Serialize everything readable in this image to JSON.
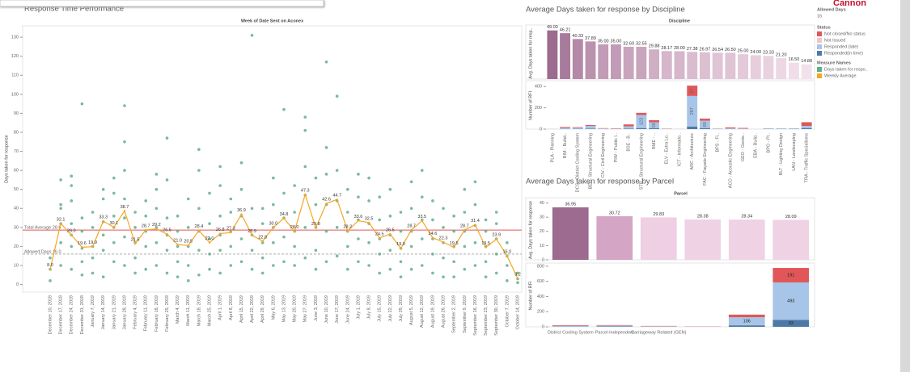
{
  "logo": "Cannon",
  "legend": {
    "allowed_days_title": "Allowed Days",
    "allowed_days_value": 16,
    "status_title": "Status",
    "measure_title": "Measure Names"
  },
  "chart_data": [
    {
      "type": "scatter_line",
      "title": "Response Time Performance",
      "subtitle": "Week of Date Sent on Aconex",
      "y_label": "Days taken for response",
      "categories": [
        "December 10, 2018",
        "December 17, 2018",
        "December 24, 2018",
        "December 31, 2018",
        "January 7, 2019",
        "January 14, 2019",
        "January 21, 2019",
        "January 28, 2019",
        "February 4, 2019",
        "February 11, 2019",
        "February 18, 2019",
        "February 25, 2019",
        "March 4, 2019",
        "March 11, 2019",
        "March 18, 2019",
        "March 25, 2019",
        "April 1, 2019",
        "April 8, 2019",
        "April 15, 2019",
        "April 22, 2019",
        "April 29, 2019",
        "May 6, 2019",
        "May 13, 2019",
        "May 20, 2019",
        "May 27, 2019",
        "June 3, 2019",
        "June 10, 2019",
        "June 17, 2019",
        "June 24, 2019",
        "July 1, 2019",
        "July 8, 2019",
        "July 15, 2019",
        "July 22, 2019",
        "July 29, 2019",
        "August 5, 2019",
        "August 12, 2019",
        "August 19, 2019",
        "August 26, 2019",
        "September 2, 2019",
        "September 9, 2019",
        "September 16, 2019",
        "September 23, 2019",
        "September 30, 2019",
        "October 7, 2019",
        "October 14, 2019"
      ],
      "points": {
        "name": "Days taken for respo..",
        "color": "#5fae8c",
        "values": [
          [
            2,
            8,
            14
          ],
          [
            10,
            22,
            32,
            40,
            42,
            55
          ],
          [
            8,
            20,
            26,
            32,
            44,
            52,
            57
          ],
          [
            5,
            12,
            19,
            28,
            35,
            95
          ],
          [
            6,
            14,
            20,
            30,
            38
          ],
          [
            4,
            18,
            26,
            33,
            45,
            50
          ],
          [
            12,
            22,
            30,
            36,
            48,
            56
          ],
          [
            10,
            25,
            35,
            45,
            60,
            75,
            94
          ],
          [
            6,
            14,
            22,
            30,
            38
          ],
          [
            8,
            20,
            28,
            36,
            44
          ],
          [
            10,
            22,
            30,
            40,
            50,
            58
          ],
          [
            6,
            18,
            26,
            35,
            55,
            77
          ],
          [
            4,
            12,
            20,
            28,
            36
          ],
          [
            2,
            10,
            20,
            30,
            45
          ],
          [
            5,
            18,
            28,
            40,
            60,
            71
          ],
          [
            8,
            16,
            24,
            32,
            48
          ],
          [
            6,
            18,
            26,
            36,
            52,
            62
          ],
          [
            10,
            20,
            28,
            38,
            45
          ],
          [
            12,
            24,
            36,
            50,
            64
          ],
          [
            8,
            18,
            26,
            40,
            131
          ],
          [
            6,
            14,
            22,
            32,
            40
          ],
          [
            10,
            22,
            30,
            42,
            56
          ],
          [
            12,
            25,
            35,
            48,
            92
          ],
          [
            10,
            20,
            28,
            38,
            52
          ],
          [
            14,
            30,
            47,
            62,
            81,
            88
          ],
          [
            8,
            18,
            30,
            42,
            56
          ],
          [
            12,
            28,
            42,
            58,
            72,
            117
          ],
          [
            15,
            30,
            44,
            60,
            99
          ],
          [
            8,
            20,
            28,
            38,
            50
          ],
          [
            12,
            24,
            34,
            46,
            58
          ],
          [
            10,
            22,
            32,
            44,
            56
          ],
          [
            6,
            16,
            24,
            34,
            46
          ],
          [
            8,
            18,
            26,
            36,
            50
          ],
          [
            4,
            12,
            19,
            28,
            38
          ],
          [
            8,
            20,
            28,
            40,
            54
          ],
          [
            10,
            24,
            34,
            46,
            60
          ],
          [
            6,
            16,
            24,
            34,
            44
          ],
          [
            4,
            14,
            22,
            30,
            40
          ],
          [
            4,
            12,
            20,
            28,
            36
          ],
          [
            8,
            20,
            28,
            38,
            50
          ],
          [
            10,
            22,
            31,
            42,
            54
          ],
          [
            4,
            12,
            20,
            28,
            34
          ],
          [
            6,
            16,
            24,
            32,
            38
          ],
          [
            2,
            10,
            15,
            22
          ],
          [
            1,
            3,
            6
          ]
        ]
      },
      "weekly_average": {
        "name": "Weekly Average",
        "color": "#f5a623",
        "values": [
          8.0,
          32.1,
          26.0,
          19.6,
          19.9,
          33.3,
          30.1,
          38.7,
          21.5,
          28.7,
          29.2,
          26.5,
          21.0,
          20.5,
          28.4,
          22.0,
          26.8,
          27.3,
          36.9,
          25.9,
          22.8,
          30.0,
          34.8,
          28.0,
          47.3,
          29.8,
          42.6,
          44.7,
          28.2,
          33.6,
          32.5,
          24.5,
          26.5,
          19.0,
          28.7,
          33.5,
          24.6,
          22.3,
          19.5,
          28.7,
          31.4,
          19.5,
          23.9,
          15.0,
          3.2
        ],
        "value_labels": [
          "8.0",
          "32.1",
          "26.0",
          "19.6",
          "19.9",
          "33.3",
          "30.1",
          "38.7",
          "21.5",
          "28.7",
          "29.2",
          "26.5",
          "21.0",
          "20.5",
          "28.4",
          "22.0",
          "26.8",
          "27.3",
          "36.9",
          "25.9",
          "22.8",
          "30.0",
          "34.8",
          "28.0",
          "47.3",
          "29.8",
          "42.6",
          "44.7",
          "28.2",
          "33.6",
          "32.5",
          "24.5",
          "26.5",
          "19.0",
          "28.7",
          "33.5",
          "24.6",
          "22.3",
          "19.5",
          "28.7",
          "31.4",
          "19.5",
          "23.9",
          "15.0",
          "3.2"
        ]
      },
      "reference_lines": [
        {
          "label": "Total Average 28.6",
          "value": 28.6,
          "color": "#e15759"
        },
        {
          "label": "Allowed Days 16.0",
          "value": 16.0,
          "color": "#aaaaaa"
        }
      ],
      "ylim": [
        -4,
        136
      ],
      "yticks": [
        0,
        10,
        20,
        30,
        40,
        50,
        60,
        70,
        80,
        90,
        100,
        110,
        120,
        130
      ]
    },
    {
      "type": "bar_stack",
      "title": "Average Days taken for response by Discipline",
      "header": "Discipline",
      "y_label": "Avg. Days taken for resp..",
      "categories": [
        "PLA - Planning",
        "BIM - Buildi..",
        "DCS - District Cooling System",
        "BEL - Structural Engineering",
        "CIV - Civil Engineering",
        "PIW - Public I..",
        "BSE - B..",
        "STR - Structural Engineering",
        "BME - ..",
        "ELV - Extra Lo..",
        "ICT - Informatio..",
        "ARC - Architecture",
        "FAC - Façade Engineering",
        "BPS - Fi..",
        "ACO - Acoustic Engineering",
        "GEO - Geote..",
        "EBA - Build..",
        "BPO - Pl..",
        "BLT - Lighting Design",
        "LAN - Landscaping",
        "TRA - Traffic Specialisms"
      ],
      "values": [
        49.0,
        46.21,
        40.33,
        37.89,
        35.0,
        35.0,
        32.6,
        32.55,
        29.88,
        28.17,
        28.0,
        27.38,
        26.97,
        26.54,
        26.5,
        25.0,
        24.0,
        23.33,
        21.2,
        16.5,
        14.88
      ],
      "value_labels": [
        "49.00",
        "46.21",
        "40.33",
        "37.89",
        "35.00",
        "35.00",
        "32.60",
        "32.55",
        "29.88",
        "28.17",
        "28.00",
        "27.38",
        "26.97",
        "26.54",
        "26.50",
        "25.00",
        "24.00",
        "23.33",
        "21.20",
        "16.50",
        "14.88"
      ],
      "colors": [
        "#9c6b8f",
        "#a87a9b",
        "#b488a7",
        "#bb92ae",
        "#c29cb6",
        "#c29cb6",
        "#c9a5bd",
        "#c9a5bd",
        "#d0afc5",
        "#d5b6ca",
        "#d5b6ca",
        "#d9bccf",
        "#dcc0d2",
        "#dfc4d5",
        "#dfc4d5",
        "#e3c9d9",
        "#e6cedc",
        "#e9d2df",
        "#ecd7e3",
        "#f0dde8",
        "#f2e1eb"
      ],
      "ylim": [
        0,
        52
      ],
      "count_chart": {
        "y_label": "Number of RFI",
        "ylim": [
          0,
          440
        ],
        "yticks": [
          0,
          200,
          400
        ],
        "series": [
          {
            "name": "Responded(in time)",
            "color": "#4e79a7",
            "values": [
              0,
              2,
              3,
              5,
              1,
              1,
              4,
              10,
              8,
              0,
              0,
              25,
              10,
              1,
              2,
              1,
              0,
              2,
              2,
              2,
              10
            ]
          },
          {
            "name": "Responded (late)",
            "color": "#a7c5e8",
            "values": [
              2,
              10,
              12,
              25,
              5,
              3,
              22,
              123,
              56,
              3,
              2,
              287,
              69,
              4,
              6,
              4,
              1,
              6,
              5,
              6,
              20
            ]
          },
          {
            "name": "Not Issued",
            "color": "#f5c4c0",
            "values": [
              0,
              0,
              0,
              0,
              0,
              0,
              0,
              0,
              0,
              0,
              0,
              0,
              0,
              0,
              0,
              0,
              0,
              0,
              0,
              0,
              0
            ]
          },
          {
            "name": "Not closed/No status",
            "color": "#e15759",
            "values": [
              0,
              8,
              4,
              8,
              3,
              3,
              18,
              20,
              20,
              2,
              0,
              97,
              20,
              1,
              8,
              6,
              0,
              0,
              0,
              0,
              35
            ]
          }
        ]
      }
    },
    {
      "type": "bar_stack",
      "title": "Average Days taken for response by Parcel",
      "header": "Parcel",
      "y_label": "Avg. Days taken for response",
      "categories": [
        "District Cooling System",
        "Parcel-Independent",
        "Carriageway Related (GEN)",
        null,
        null,
        null
      ],
      "values": [
        36.95,
        30.72,
        29.83,
        28.38,
        28.34,
        28.09
      ],
      "value_labels": [
        "36.95",
        "30.72",
        "29.83",
        "28.38",
        "28.34",
        "28.09"
      ],
      "colors": [
        "#9c6b8f",
        "#d4a5c5",
        "#efcfe3",
        "#f0d2e5",
        "#f0d2e5",
        "#f0d2e5"
      ],
      "ylim": [
        0,
        42
      ],
      "yticks": [
        0,
        10,
        20,
        30,
        40
      ],
      "count_chart": {
        "y_label": "Number of RFI",
        "ylim": [
          0,
          820
        ],
        "yticks": [
          0,
          200,
          400,
          600,
          800
        ],
        "series": [
          {
            "name": "Responded(in time)",
            "color": "#4e79a7",
            "values": [
              3,
              5,
              2,
              0,
              20,
              93
            ]
          },
          {
            "name": "Responded (late)",
            "color": "#a7c5e8",
            "values": [
              10,
              12,
              6,
              2,
              106,
              493
            ]
          },
          {
            "name": "Not Issued",
            "color": "#f5c4c0",
            "values": [
              0,
              0,
              0,
              0,
              0,
              0
            ]
          },
          {
            "name": "Not closed/No status",
            "color": "#e15759",
            "values": [
              8,
              6,
              4,
              3,
              35,
              191
            ]
          }
        ]
      }
    }
  ]
}
